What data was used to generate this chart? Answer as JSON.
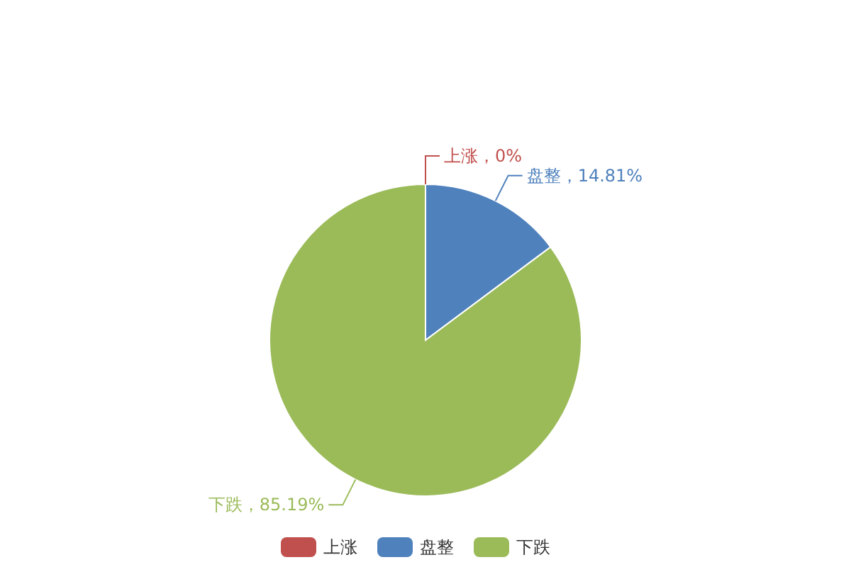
{
  "chart_data": {
    "type": "pie",
    "categories": [
      "上涨",
      "盘整",
      "下跌"
    ],
    "values": [
      0,
      14.81,
      85.19
    ],
    "colors": [
      "#c0504d",
      "#4f81bd",
      "#9bbb59"
    ],
    "value_labels": [
      "上涨，0%",
      "盘整，14.81%",
      "下跌，85.19%"
    ],
    "legend": "bottom"
  }
}
